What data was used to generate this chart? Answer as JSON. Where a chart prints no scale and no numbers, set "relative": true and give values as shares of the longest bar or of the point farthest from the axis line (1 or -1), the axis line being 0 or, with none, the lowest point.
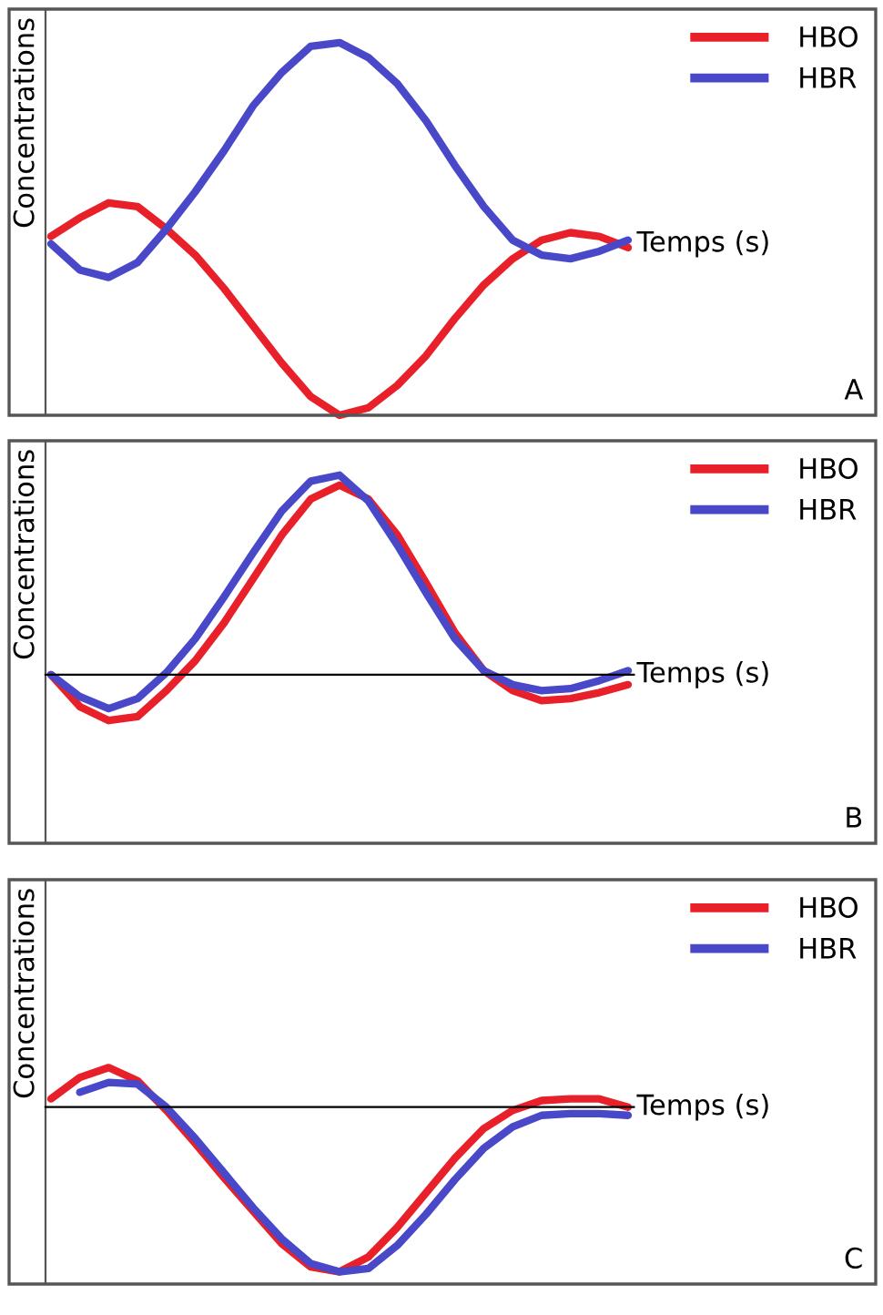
{
  "chart_data": [
    {
      "type": "line",
      "relative": true,
      "xlabel": "Temps (s)",
      "ylabel": "Concentrations",
      "legend": "top right",
      "annotations": [
        "A"
      ],
      "categories": [
        null,
        null,
        null,
        null,
        null,
        null,
        null,
        null,
        null,
        null,
        null,
        null,
        null,
        null,
        null,
        null,
        null,
        null,
        null,
        null,
        null
      ],
      "series": [
        {
          "name": "HBO",
          "color": "#e8202a",
          "values": [
            0.48,
            0.53,
            0.57,
            0.56,
            0.5,
            0.43,
            0.34,
            0.24,
            0.14,
            0.05,
            0.0,
            0.02,
            0.08,
            0.16,
            0.26,
            0.35,
            0.42,
            0.47,
            0.49,
            0.48,
            0.45
          ]
        },
        {
          "name": "HBR",
          "color": "#4848c8",
          "values": [
            0.46,
            0.39,
            0.37,
            0.41,
            0.5,
            0.6,
            0.71,
            0.83,
            0.92,
            0.99,
            1.0,
            0.96,
            0.89,
            0.79,
            0.67,
            0.56,
            0.47,
            0.43,
            0.42,
            0.44,
            0.47
          ]
        }
      ]
    },
    {
      "type": "line",
      "relative": true,
      "xlabel": "Temps (s)",
      "ylabel": "Concentrations",
      "legend": "top right",
      "annotations": [
        "B"
      ],
      "categories": [
        null,
        null,
        null,
        null,
        null,
        null,
        null,
        null,
        null,
        null,
        null,
        null,
        null,
        null,
        null,
        null,
        null,
        null,
        null,
        null,
        null
      ],
      "series": [
        {
          "name": "HBO",
          "color": "#e8202a",
          "values": [
            0.0,
            -0.16,
            -0.23,
            -0.21,
            -0.08,
            0.07,
            0.26,
            0.48,
            0.7,
            0.88,
            0.95,
            0.88,
            0.7,
            0.46,
            0.21,
            0.02,
            -0.08,
            -0.13,
            -0.12,
            -0.09,
            -0.05
          ]
        },
        {
          "name": "HBR",
          "color": "#4848c8",
          "values": [
            0.0,
            -0.11,
            -0.17,
            -0.12,
            0.01,
            0.18,
            0.39,
            0.61,
            0.82,
            0.97,
            1.0,
            0.87,
            0.65,
            0.41,
            0.18,
            0.02,
            -0.05,
            -0.08,
            -0.07,
            -0.03,
            0.02
          ]
        }
      ]
    },
    {
      "type": "line",
      "relative": true,
      "xlabel": "Temps (s)",
      "ylabel": "Concentrations",
      "legend": "top right",
      "annotations": [
        "C"
      ],
      "categories": [
        null,
        null,
        null,
        null,
        null,
        null,
        null,
        null,
        null,
        null,
        null,
        null,
        null,
        null,
        null,
        null,
        null,
        null,
        null,
        null,
        null
      ],
      "series": [
        {
          "name": "HBO",
          "color": "#e8202a",
          "values": [
            0.05,
            0.18,
            0.24,
            0.16,
            -0.02,
            -0.22,
            -0.43,
            -0.63,
            -0.83,
            -0.97,
            -1.0,
            -0.91,
            -0.73,
            -0.52,
            -0.31,
            -0.13,
            -0.02,
            0.04,
            0.05,
            0.05,
            0.0
          ]
        },
        {
          "name": "HBR",
          "color": "#4848c8",
          "values": [
            null,
            0.09,
            0.15,
            0.14,
            0.0,
            -0.19,
            -0.4,
            -0.61,
            -0.8,
            -0.95,
            -1.0,
            -0.98,
            -0.84,
            -0.65,
            -0.44,
            -0.25,
            -0.12,
            -0.05,
            -0.04,
            -0.04,
            -0.05
          ]
        }
      ]
    }
  ]
}
